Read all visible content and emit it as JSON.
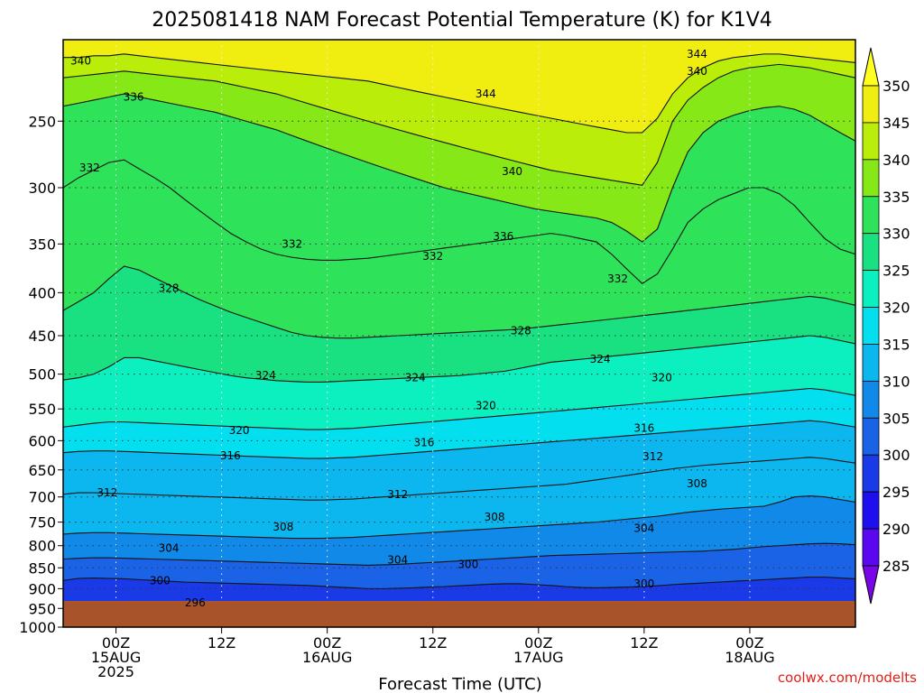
{
  "chart_data": {
    "type": "heatmap",
    "title": "2025081418 NAM Forecast Potential Temperature (K) for K1V4",
    "xlabel": "Forecast Time (UTC)",
    "ylabel": "",
    "y_scale": "log",
    "y_reversed": true,
    "ylim": [
      1000,
      200
    ],
    "y_ticks": [
      250,
      300,
      350,
      400,
      450,
      500,
      550,
      600,
      650,
      700,
      750,
      800,
      850,
      900,
      950,
      1000
    ],
    "xlim": [
      "2025-08-14T18:00",
      "2025-08-18T12:00"
    ],
    "x_ticks": [
      {
        "line1": "00Z",
        "line2": "15AUG",
        "line3": "2025",
        "time": "2025-08-15T00:00"
      },
      {
        "line1": "12Z",
        "line2": "",
        "line3": "",
        "time": "2025-08-15T12:00"
      },
      {
        "line1": "00Z",
        "line2": "16AUG",
        "line3": "",
        "time": "2025-08-16T00:00"
      },
      {
        "line1": "12Z",
        "line2": "",
        "line3": "",
        "time": "2025-08-16T12:00"
      },
      {
        "line1": "00Z",
        "line2": "17AUG",
        "line3": "",
        "time": "2025-08-17T00:00"
      },
      {
        "line1": "12Z",
        "line2": "",
        "line3": "",
        "time": "2025-08-17T12:00"
      },
      {
        "line1": "00Z",
        "line2": "18AUG",
        "line3": "",
        "time": "2025-08-18T00:00"
      }
    ],
    "grid": true,
    "surface_pressure_hPa": 970,
    "colorbar": {
      "levels": [
        285,
        290,
        295,
        300,
        305,
        310,
        315,
        320,
        325,
        330,
        335,
        340,
        345,
        350
      ],
      "colors": [
        "#7a05e8",
        "#5a08f0",
        "#1e10ee",
        "#1a3ae8",
        "#1a63e6",
        "#1089e8",
        "#0bb7ee",
        "#04dff0",
        "#0cf0c0",
        "#19e080",
        "#2ee35a",
        "#86e816",
        "#bbed0b",
        "#f0ee10",
        "#ffff22"
      ],
      "position": "right"
    },
    "contour_interval": 4,
    "contour_lines": [
      {
        "value": 296,
        "label": "296",
        "p": [
          960,
          958,
          958,
          958,
          958,
          958,
          958,
          958,
          958,
          958,
          958,
          958,
          958,
          958,
          958,
          958,
          960,
          962,
          965,
          968,
          970,
          968,
          965,
          962,
          960,
          960,
          960,
          960,
          960,
          960,
          960,
          960,
          960,
          960,
          960,
          960,
          962,
          965,
          968,
          970,
          970,
          970,
          970,
          970,
          970,
          970,
          970,
          970,
          970,
          970,
          970,
          970,
          970
        ]
      },
      {
        "value": 300,
        "label": "300",
        "p": [
          880,
          875,
          874,
          875,
          876,
          878,
          880,
          882,
          884,
          885,
          886,
          887,
          888,
          889,
          890,
          891,
          892,
          894,
          896,
          898,
          900,
          900,
          899,
          898,
          896,
          895,
          893,
          891,
          889,
          888,
          888,
          890,
          892,
          895,
          897,
          898,
          897,
          896,
          895,
          893,
          890,
          888,
          886,
          884,
          882,
          880,
          878,
          876,
          874,
          872,
          872,
          874,
          876
        ]
      },
      {
        "value": 304,
        "label": "304",
        "p": [
          830,
          828,
          827,
          827,
          828,
          829,
          830,
          831,
          832,
          833,
          834,
          835,
          836,
          837,
          838,
          839,
          840,
          841,
          842,
          843,
          844,
          843,
          842,
          840,
          838,
          836,
          834,
          832,
          830,
          828,
          826,
          824,
          822,
          821,
          820,
          819,
          818,
          817,
          816,
          815,
          814,
          813,
          812,
          810,
          808,
          805,
          802,
          800,
          798,
          796,
          795,
          796,
          798
        ]
      },
      {
        "value": 308,
        "label": "308",
        "p": [
          775,
          773,
          772,
          772,
          773,
          774,
          775,
          776,
          777,
          778,
          779,
          780,
          781,
          782,
          783,
          784,
          784,
          784,
          783,
          782,
          780,
          778,
          776,
          774,
          772,
          770,
          768,
          766,
          764,
          762,
          760,
          758,
          756,
          754,
          752,
          750,
          747,
          744,
          741,
          738,
          734,
          730,
          727,
          724,
          722,
          720,
          718,
          710,
          700,
          698,
          700,
          705,
          710
        ]
      },
      {
        "value": 312,
        "label": "312",
        "p": [
          695,
          692,
          692,
          693,
          694,
          695,
          696,
          697,
          698,
          699,
          700,
          701,
          702,
          703,
          704,
          705,
          706,
          706,
          705,
          704,
          702,
          700,
          698,
          696,
          694,
          692,
          690,
          688,
          686,
          684,
          682,
          680,
          678,
          676,
          672,
          668,
          664,
          660,
          656,
          652,
          648,
          645,
          642,
          640,
          638,
          636,
          634,
          632,
          630,
          628,
          630,
          634,
          638
        ]
      },
      {
        "value": 316,
        "label": "316",
        "p": [
          620,
          618,
          617,
          617,
          618,
          619,
          620,
          621,
          622,
          623,
          624,
          625,
          626,
          627,
          628,
          629,
          630,
          630,
          629,
          628,
          626,
          624,
          622,
          620,
          618,
          616,
          614,
          612,
          610,
          608,
          606,
          604,
          602,
          600,
          598,
          596,
          594,
          592,
          590,
          588,
          586,
          584,
          582,
          580,
          578,
          576,
          574,
          572,
          570,
          568,
          570,
          574,
          578
        ]
      },
      {
        "value": 320,
        "label": "320",
        "p": [
          578,
          575,
          572,
          570,
          570,
          571,
          572,
          573,
          574,
          575,
          576,
          577,
          578,
          579,
          580,
          581,
          582,
          582,
          581,
          580,
          578,
          576,
          574,
          572,
          570,
          568,
          566,
          564,
          562,
          560,
          558,
          556,
          554,
          552,
          550,
          548,
          546,
          544,
          542,
          540,
          538,
          536,
          534,
          532,
          530,
          528,
          526,
          524,
          522,
          520,
          522,
          526,
          530
        ]
      },
      {
        "value": 324,
        "label": "324",
        "p": [
          508,
          505,
          500,
          490,
          478,
          478,
          482,
          486,
          490,
          494,
          498,
          502,
          505,
          507,
          509,
          510,
          511,
          511,
          510,
          509,
          508,
          507,
          506,
          505,
          504,
          503,
          502,
          500,
          498,
          496,
          492,
          488,
          484,
          482,
          480,
          478,
          476,
          474,
          472,
          470,
          468,
          466,
          464,
          462,
          460,
          458,
          456,
          454,
          452,
          450,
          452,
          456,
          460
        ]
      },
      {
        "value": 328,
        "label": "328",
        "p": [
          420,
          410,
          400,
          385,
          372,
          376,
          384,
          392,
          400,
          408,
          415,
          422,
          428,
          434,
          440,
          446,
          450,
          452,
          453,
          453,
          452,
          451,
          450,
          449,
          448,
          447,
          446,
          445,
          444,
          443,
          442,
          440,
          438,
          436,
          434,
          432,
          430,
          428,
          426,
          424,
          422,
          420,
          418,
          416,
          414,
          412,
          410,
          408,
          406,
          404,
          406,
          410,
          414
        ]
      },
      {
        "value": 332,
        "label": "332",
        "p": [
          300,
          292,
          286,
          280,
          278,
          285,
          292,
          300,
          310,
          320,
          330,
          340,
          348,
          355,
          360,
          363,
          365,
          366,
          366,
          365,
          364,
          362,
          360,
          358,
          356,
          354,
          352,
          350,
          348,
          346,
          344,
          342,
          340,
          342,
          345,
          348,
          360,
          375,
          390,
          380,
          355,
          330,
          318,
          310,
          305,
          300,
          300,
          305,
          315,
          330,
          345,
          355,
          360
        ]
      },
      {
        "value": 336,
        "label": "336",
        "p": [
          240,
          238,
          236,
          234,
          232,
          234,
          236,
          238,
          240,
          242,
          244,
          247,
          250,
          253,
          256,
          260,
          264,
          268,
          272,
          276,
          280,
          284,
          288,
          292,
          296,
          300,
          303,
          306,
          309,
          312,
          315,
          318,
          320,
          322,
          324,
          326,
          330,
          338,
          348,
          336,
          300,
          272,
          258,
          250,
          246,
          243,
          241,
          240,
          242,
          246,
          252,
          258,
          264
        ]
      },
      {
        "value": 340,
        "label": "340",
        "p": [
          222,
          221,
          220,
          219,
          218,
          219,
          220,
          221,
          222,
          223,
          224,
          226,
          228,
          230,
          232,
          235,
          238,
          241,
          244,
          247,
          250,
          253,
          256,
          259,
          262,
          265,
          268,
          271,
          274,
          277,
          280,
          283,
          286,
          288,
          290,
          292,
          294,
          296,
          298,
          280,
          250,
          236,
          228,
          222,
          218,
          216,
          215,
          214,
          215,
          216,
          218,
          220,
          222
        ]
      },
      {
        "value": 344,
        "label": "344",
        "p": [
          210,
          210,
          209,
          209,
          208,
          209,
          210,
          211,
          212,
          213,
          214,
          215,
          216,
          217,
          218,
          219,
          220,
          221,
          222,
          223,
          224,
          226,
          228,
          230,
          232,
          234,
          236,
          238,
          240,
          242,
          244,
          246,
          248,
          250,
          252,
          254,
          256,
          258,
          258,
          248,
          232,
          222,
          216,
          212,
          210,
          209,
          208,
          208,
          209,
          210,
          211,
          212,
          213
        ]
      }
    ],
    "contour_label_positions": [
      {
        "value": 340,
        "label": "340",
        "time": "2025-08-14T20:00",
        "p": 212
      },
      {
        "value": 336,
        "label": "336",
        "time": "2025-08-15T02:00",
        "p": 234
      },
      {
        "value": 332,
        "label": "332",
        "time": "2025-08-14T21:00",
        "p": 284
      },
      {
        "value": 344,
        "label": "344",
        "time": "2025-08-16T18:00",
        "p": 232
      },
      {
        "value": 340,
        "label": "340",
        "time": "2025-08-16T21:00",
        "p": 287
      },
      {
        "value": 336,
        "label": "336",
        "time": "2025-08-16T20:00",
        "p": 343
      },
      {
        "value": 332,
        "label": "332",
        "time": "2025-08-15T20:00",
        "p": 350
      },
      {
        "value": 332,
        "label": "332",
        "time": "2025-08-16T12:00",
        "p": 362
      },
      {
        "value": 332,
        "label": "332",
        "time": "2025-08-17T09:00",
        "p": 385
      },
      {
        "value": 344,
        "label": "344",
        "time": "2025-08-17T18:00",
        "p": 208
      },
      {
        "value": 340,
        "label": "340",
        "time": "2025-08-17T18:00",
        "p": 218
      },
      {
        "value": 328,
        "label": "328",
        "time": "2025-08-15T06:00",
        "p": 395
      },
      {
        "value": 328,
        "label": "328",
        "time": "2025-08-16T22:00",
        "p": 444
      },
      {
        "value": 324,
        "label": "324",
        "time": "2025-08-15T17:00",
        "p": 502
      },
      {
        "value": 324,
        "label": "324",
        "time": "2025-08-16T10:00",
        "p": 505
      },
      {
        "value": 324,
        "label": "324",
        "time": "2025-08-17T07:00",
        "p": 480
      },
      {
        "value": 320,
        "label": "320",
        "time": "2025-08-16T18:00",
        "p": 545
      },
      {
        "value": 320,
        "label": "320",
        "time": "2025-08-17T14:00",
        "p": 505
      },
      {
        "value": 320,
        "label": "320",
        "time": "2025-08-15T14:00",
        "p": 583
      },
      {
        "value": 316,
        "label": "316",
        "time": "2025-08-15T13:00",
        "p": 625
      },
      {
        "value": 316,
        "label": "316",
        "time": "2025-08-16T11:00",
        "p": 603
      },
      {
        "value": 316,
        "label": "316",
        "time": "2025-08-17T12:00",
        "p": 580
      },
      {
        "value": 312,
        "label": "312",
        "time": "2025-08-17T13:00",
        "p": 627
      },
      {
        "value": 312,
        "label": "312",
        "time": "2025-08-14T23:00",
        "p": 692
      },
      {
        "value": 312,
        "label": "312",
        "time": "2025-08-16T08:00",
        "p": 695
      },
      {
        "value": 308,
        "label": "308",
        "time": "2025-08-17T18:00",
        "p": 675
      },
      {
        "value": 308,
        "label": "308",
        "time": "2025-08-15T19:00",
        "p": 760
      },
      {
        "value": 308,
        "label": "308",
        "time": "2025-08-16T19:00",
        "p": 740
      },
      {
        "value": 304,
        "label": "304",
        "time": "2025-08-17T12:00",
        "p": 763
      },
      {
        "value": 304,
        "label": "304",
        "time": "2025-08-15T06:00",
        "p": 805
      },
      {
        "value": 304,
        "label": "304",
        "time": "2025-08-16T08:00",
        "p": 832
      },
      {
        "value": 300,
        "label": "300",
        "time": "2025-08-16T16:00",
        "p": 842
      },
      {
        "value": 300,
        "label": "300",
        "time": "2025-08-15T05:00",
        "p": 880
      },
      {
        "value": 300,
        "label": "300",
        "time": "2025-08-17T12:00",
        "p": 888
      },
      {
        "value": 296,
        "label": "296",
        "time": "2025-08-15T09:00",
        "p": 935
      }
    ]
  },
  "credit": "coolwx.com/modelts"
}
